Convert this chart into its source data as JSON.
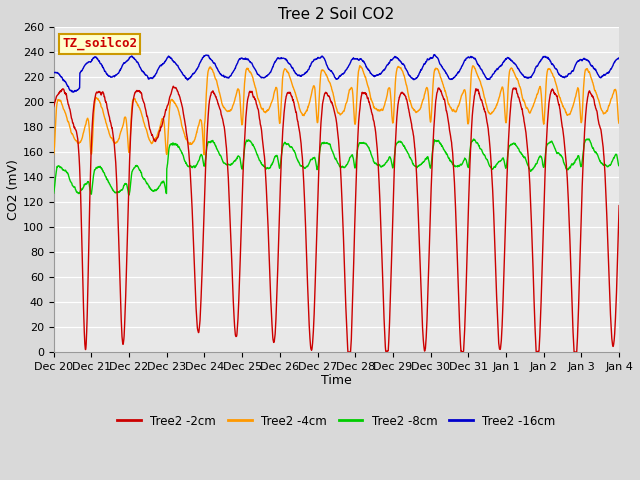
{
  "title": "Tree 2 Soil CO2",
  "xlabel": "Time",
  "ylabel": "CO2 (mV)",
  "legend_label": "TZ_soilco2",
  "ylim": [
    0,
    260
  ],
  "yticks": [
    0,
    20,
    40,
    60,
    80,
    100,
    120,
    140,
    160,
    180,
    200,
    220,
    240,
    260
  ],
  "series_colors": {
    "2cm": "#cc0000",
    "4cm": "#ff9900",
    "8cm": "#00cc00",
    "16cm": "#0000cc"
  },
  "legend_entries": [
    "Tree2 -2cm",
    "Tree2 -4cm",
    "Tree2 -8cm",
    "Tree2 -16cm"
  ],
  "legend_colors": [
    "#cc0000",
    "#ff9900",
    "#00cc00",
    "#0000cc"
  ],
  "background_color": "#d9d9d9",
  "plot_background": "#e8e8e8",
  "xtick_labels": [
    "Dec 20",
    "Dec 21",
    "Dec 22",
    "Dec 23",
    "Dec 24",
    "Dec 25",
    "Dec 26",
    "Dec 27",
    "Dec 28",
    "Dec 29",
    "Dec 30",
    "Dec 31",
    "Jan 1",
    "Jan 2",
    "Jan 3",
    "Jan 4"
  ],
  "title_fontsize": 11,
  "axis_label_fontsize": 9,
  "tick_fontsize": 8,
  "legend_box_color": "#ffffcc",
  "legend_box_edge": "#cc9900"
}
